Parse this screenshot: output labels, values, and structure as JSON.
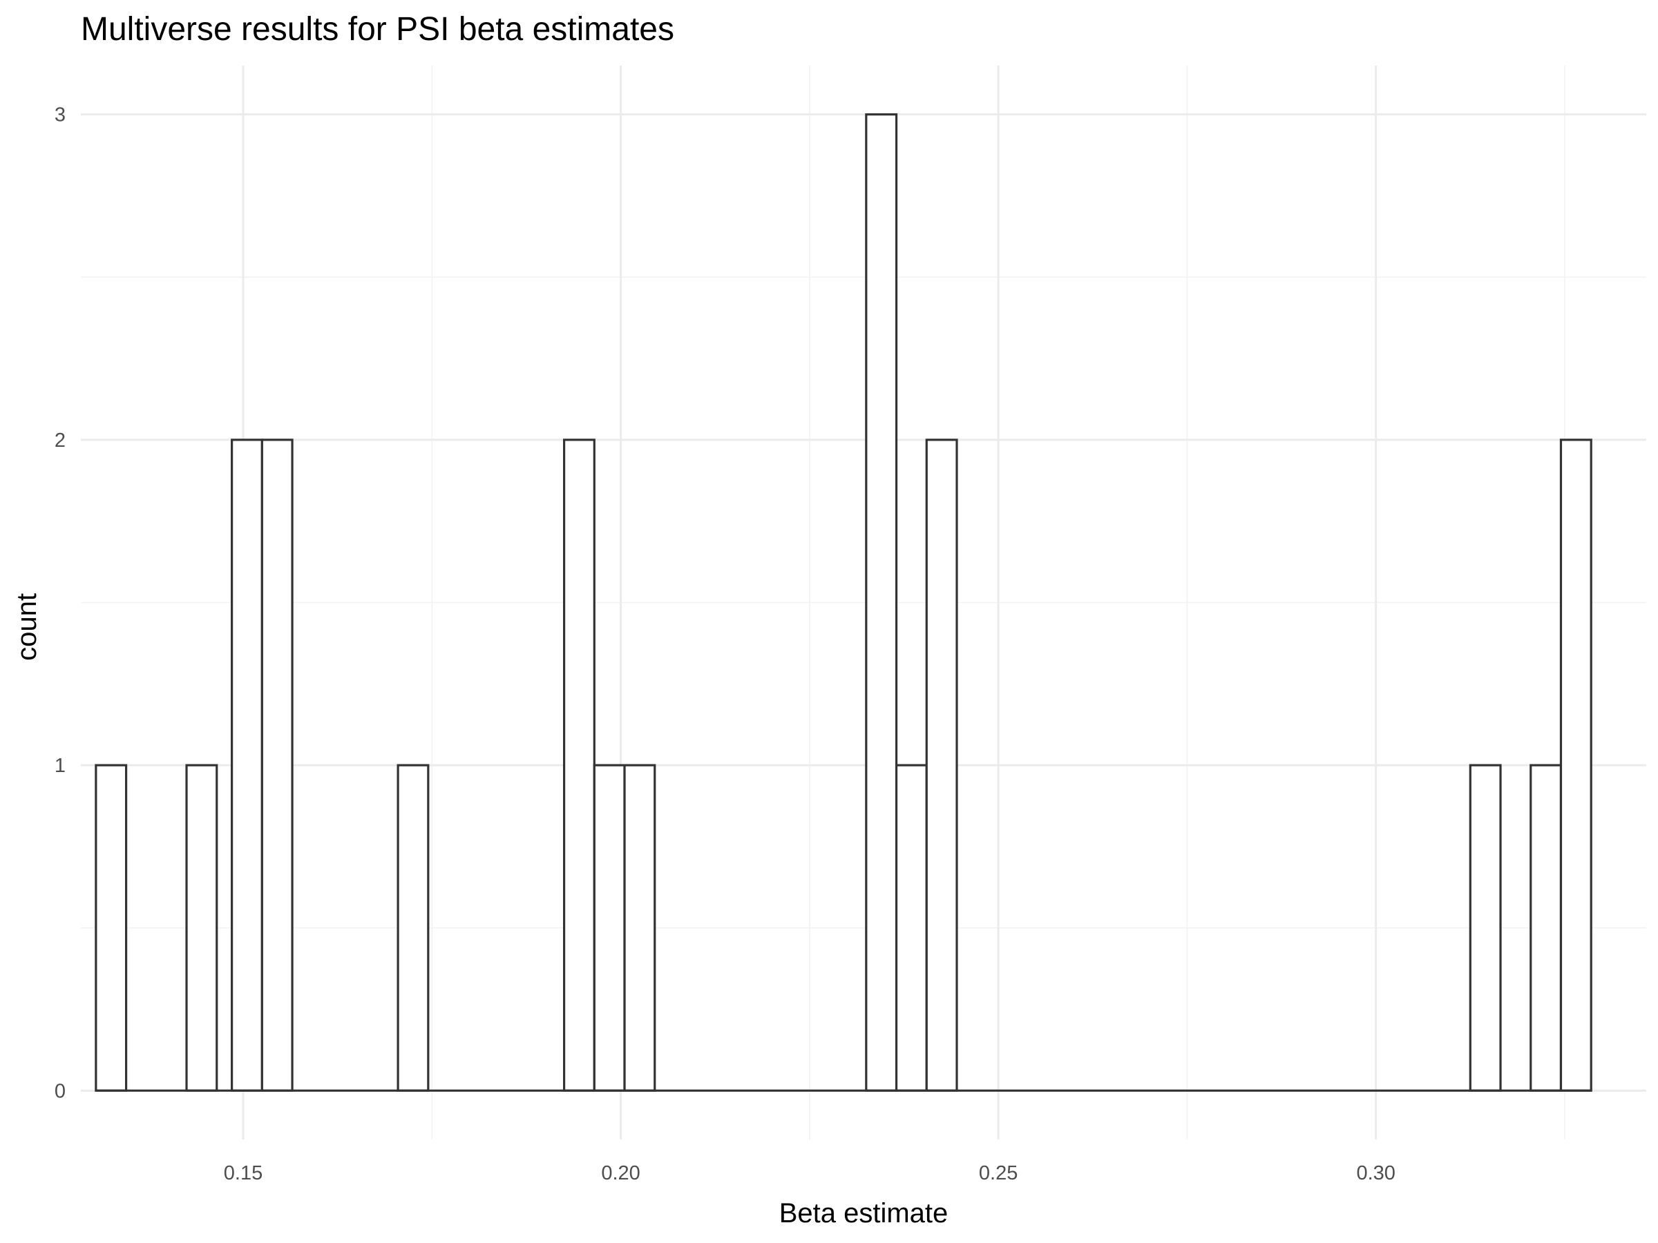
{
  "chart_data": {
    "type": "bar",
    "title": "Multiverse results for PSI beta estimates",
    "xlabel": "Beta estimate",
    "ylabel": "count",
    "xlim": [
      0.1285,
      0.3358
    ],
    "ylim": [
      -0.15,
      3.15
    ],
    "x_ticks": [
      0.15,
      0.2,
      0.25,
      0.3
    ],
    "x_tick_labels": [
      "0.15",
      "0.20",
      "0.25",
      "0.30"
    ],
    "y_ticks": [
      0,
      1,
      2,
      3
    ],
    "y_tick_labels": [
      "0",
      "1",
      "2",
      "3"
    ],
    "bin_width": 0.004,
    "bins": {
      "start": [
        0.1305,
        0.1425,
        0.1485,
        0.1525,
        0.1705,
        0.1925,
        0.1965,
        0.2005,
        0.2325,
        0.2365,
        0.2405,
        0.3125,
        0.3205,
        0.3245
      ],
      "count": [
        1,
        1,
        2,
        2,
        1,
        2,
        1,
        1,
        3,
        1,
        2,
        1,
        1,
        2
      ]
    },
    "baseline_range": [
      0.1305,
      0.3285
    ],
    "grid": true
  }
}
